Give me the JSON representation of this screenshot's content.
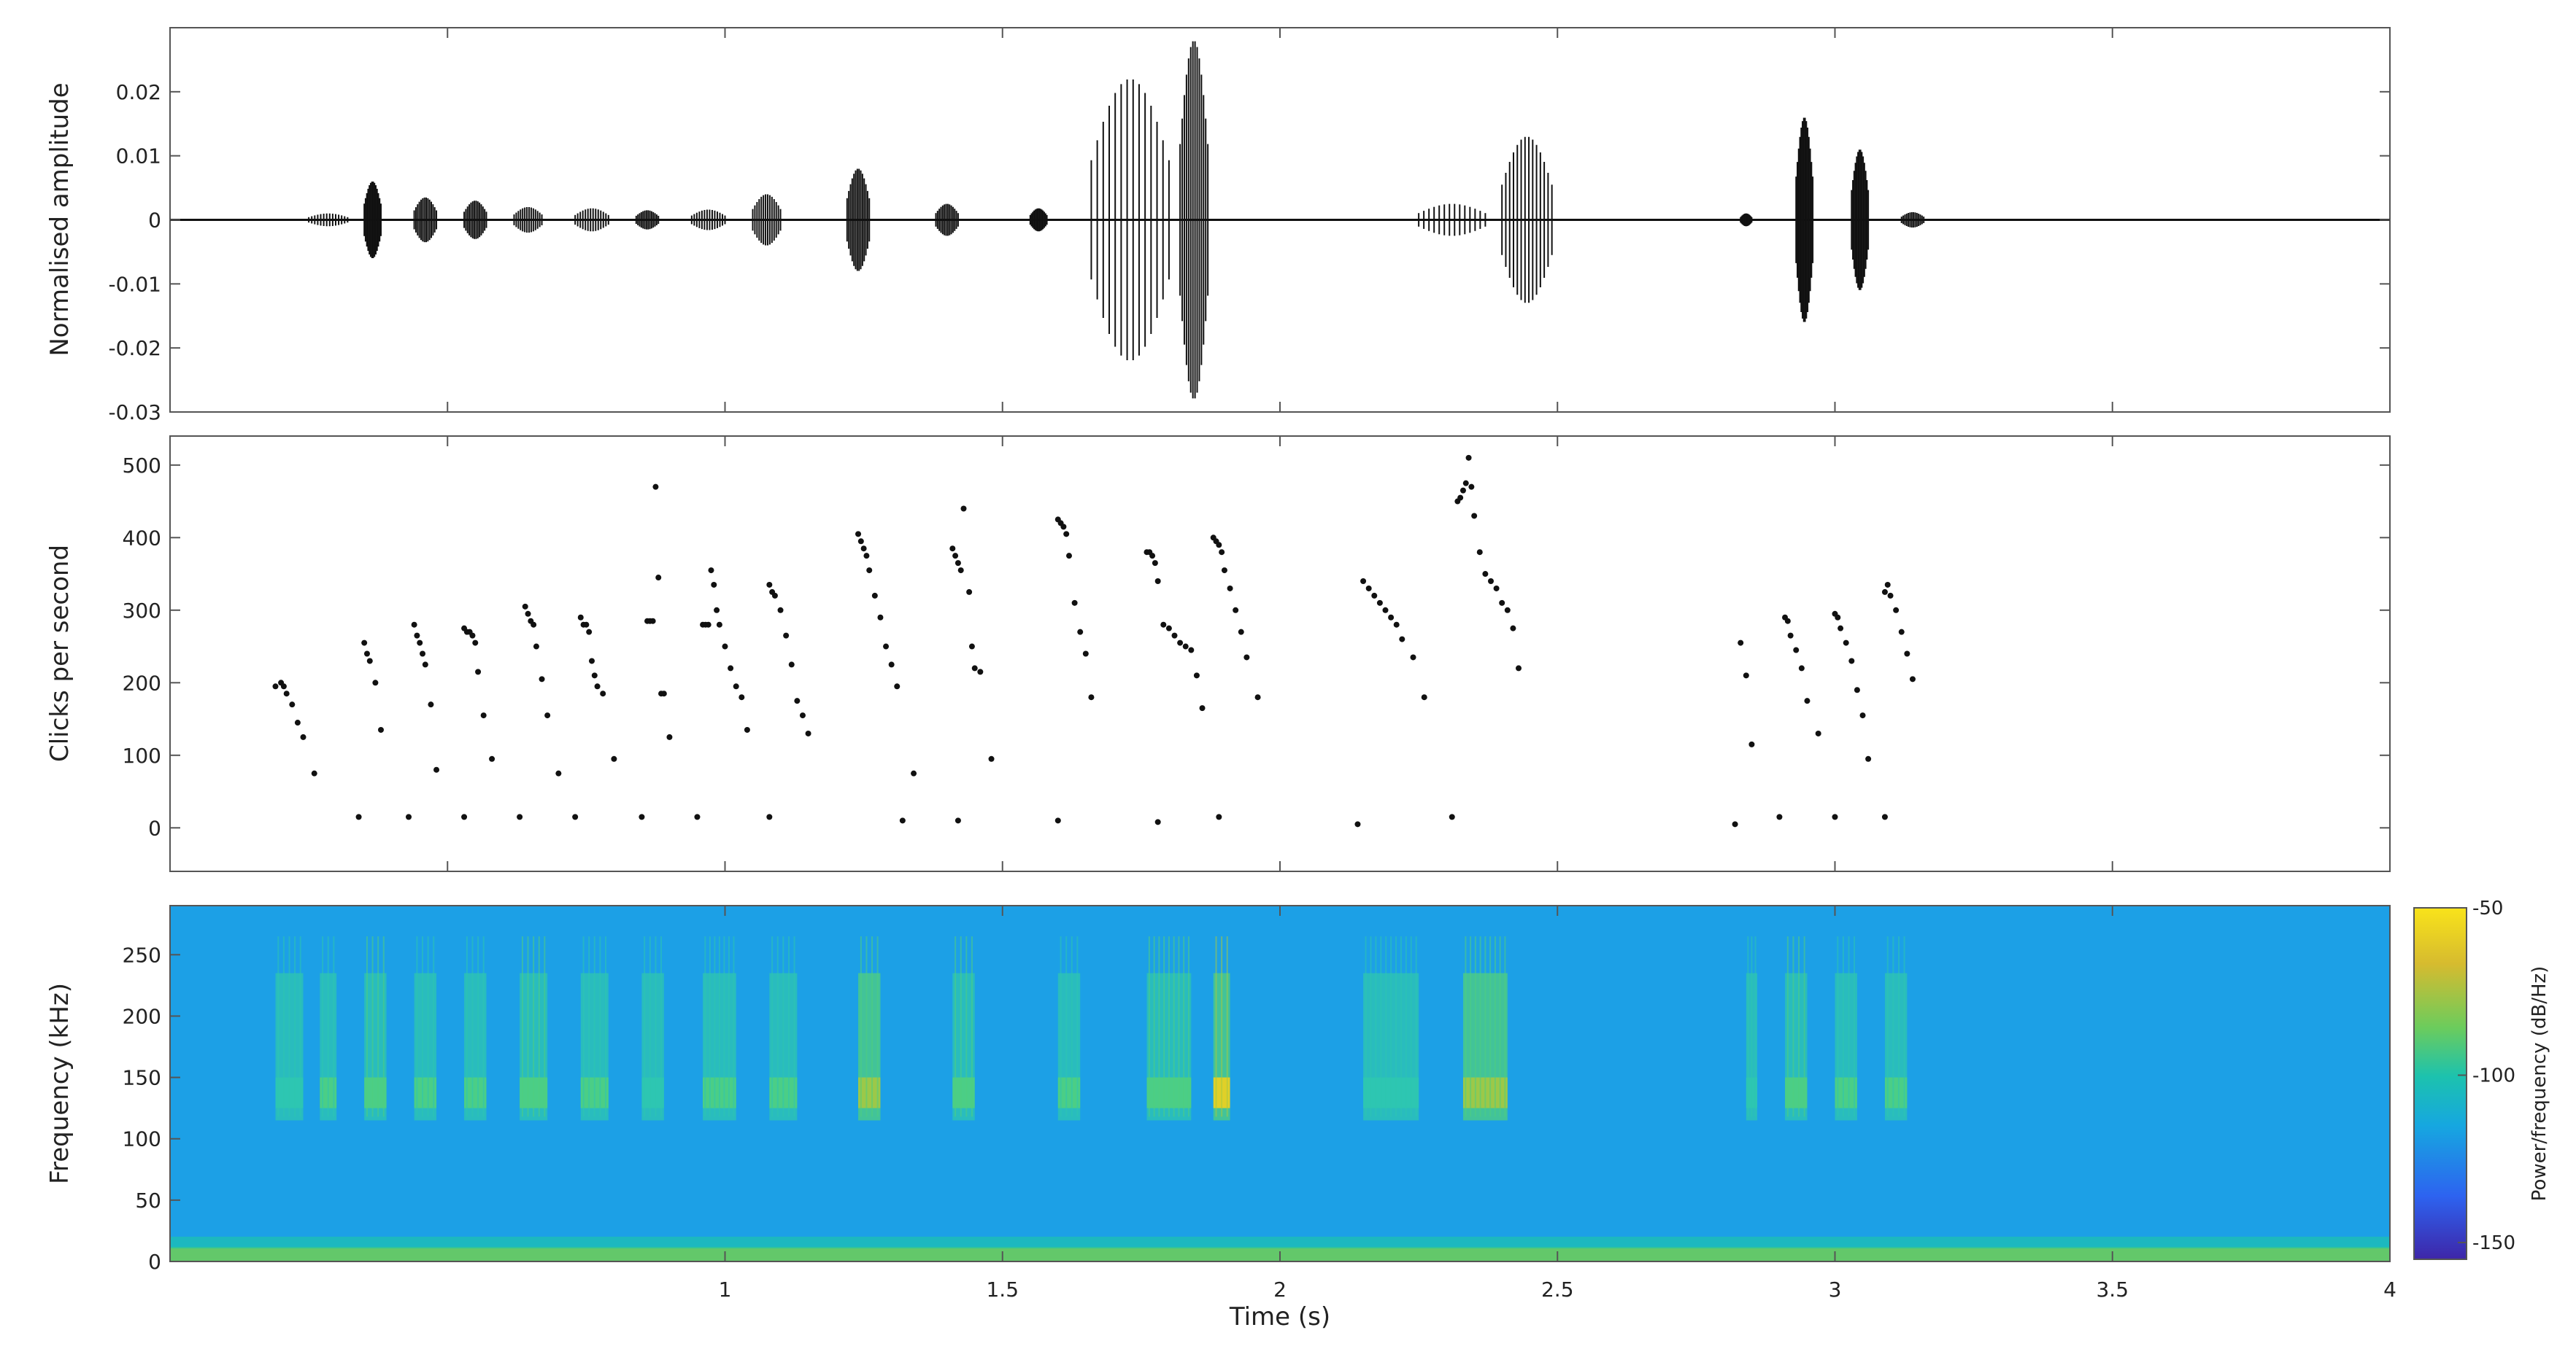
{
  "chart_data": [
    {
      "type": "line",
      "panel": "waveform",
      "ylabel": "Normalised amplitude",
      "xlabel": "",
      "xlim": [
        0,
        4
      ],
      "ylim": [
        -0.03,
        0.03
      ],
      "yticks": [
        -0.03,
        -0.02,
        -0.01,
        0,
        0.01,
        0.02
      ],
      "yticklabels": [
        "-0.03",
        "-0.02",
        "-0.01",
        "0",
        "0.01",
        "0.02"
      ],
      "grid": false,
      "bursts": [
        {
          "t0": 0.25,
          "t1": 0.32,
          "peak": 0.001
        },
        {
          "t0": 0.35,
          "t1": 0.38,
          "peak": 0.006
        },
        {
          "t0": 0.44,
          "t1": 0.48,
          "peak": 0.0035
        },
        {
          "t0": 0.53,
          "t1": 0.57,
          "peak": 0.003
        },
        {
          "t0": 0.62,
          "t1": 0.67,
          "peak": 0.002
        },
        {
          "t0": 0.73,
          "t1": 0.79,
          "peak": 0.0018
        },
        {
          "t0": 0.84,
          "t1": 0.88,
          "peak": 0.0015
        },
        {
          "t0": 0.94,
          "t1": 1.0,
          "peak": 0.0016
        },
        {
          "t0": 1.05,
          "t1": 1.1,
          "peak": 0.004
        },
        {
          "t0": 1.22,
          "t1": 1.26,
          "peak": 0.008
        },
        {
          "t0": 1.38,
          "t1": 1.42,
          "peak": 0.0025
        },
        {
          "t0": 1.55,
          "t1": 1.58,
          "peak": 0.0018
        },
        {
          "t0": 1.66,
          "t1": 1.8,
          "peak": 0.022
        },
        {
          "t0": 1.82,
          "t1": 1.87,
          "peak": 0.028
        },
        {
          "t0": 2.25,
          "t1": 2.37,
          "peak": 0.0025
        },
        {
          "t0": 2.4,
          "t1": 2.49,
          "peak": 0.013
        },
        {
          "t0": 2.83,
          "t1": 2.85,
          "peak": 0.001
        },
        {
          "t0": 2.93,
          "t1": 2.96,
          "peak": 0.016
        },
        {
          "t0": 3.03,
          "t1": 3.06,
          "peak": 0.011
        },
        {
          "t0": 3.12,
          "t1": 3.16,
          "peak": 0.0012
        }
      ]
    },
    {
      "type": "scatter",
      "panel": "click-rate",
      "ylabel": "Clicks per second",
      "xlabel": "",
      "xlim": [
        0,
        4
      ],
      "ylim": [
        -60,
        540
      ],
      "yticks": [
        0,
        100,
        200,
        300,
        400,
        500
      ],
      "yticklabels": [
        "0",
        "100",
        "200",
        "300",
        "400",
        "500"
      ],
      "grid": false,
      "points": [
        [
          0.19,
          195
        ],
        [
          0.2,
          200
        ],
        [
          0.205,
          195
        ],
        [
          0.21,
          185
        ],
        [
          0.22,
          170
        ],
        [
          0.23,
          145
        ],
        [
          0.24,
          125
        ],
        [
          0.26,
          75
        ],
        [
          0.34,
          15
        ],
        [
          0.35,
          255
        ],
        [
          0.355,
          240
        ],
        [
          0.36,
          230
        ],
        [
          0.37,
          200
        ],
        [
          0.38,
          135
        ],
        [
          0.43,
          15
        ],
        [
          0.44,
          280
        ],
        [
          0.445,
          265
        ],
        [
          0.45,
          255
        ],
        [
          0.455,
          240
        ],
        [
          0.46,
          225
        ],
        [
          0.47,
          170
        ],
        [
          0.48,
          80
        ],
        [
          0.53,
          15
        ],
        [
          0.53,
          275
        ],
        [
          0.535,
          270
        ],
        [
          0.54,
          270
        ],
        [
          0.545,
          265
        ],
        [
          0.55,
          255
        ],
        [
          0.555,
          215
        ],
        [
          0.565,
          155
        ],
        [
          0.58,
          95
        ],
        [
          0.63,
          15
        ],
        [
          0.64,
          305
        ],
        [
          0.645,
          295
        ],
        [
          0.65,
          285
        ],
        [
          0.655,
          280
        ],
        [
          0.66,
          250
        ],
        [
          0.67,
          205
        ],
        [
          0.68,
          155
        ],
        [
          0.7,
          75
        ],
        [
          0.73,
          15
        ],
        [
          0.74,
          290
        ],
        [
          0.745,
          280
        ],
        [
          0.75,
          280
        ],
        [
          0.755,
          270
        ],
        [
          0.76,
          230
        ],
        [
          0.765,
          210
        ],
        [
          0.77,
          195
        ],
        [
          0.78,
          185
        ],
        [
          0.8,
          95
        ],
        [
          0.85,
          15
        ],
        [
          0.86,
          285
        ],
        [
          0.865,
          285
        ],
        [
          0.87,
          285
        ],
        [
          0.875,
          470
        ],
        [
          0.88,
          345
        ],
        [
          0.885,
          185
        ],
        [
          0.89,
          185
        ],
        [
          0.9,
          125
        ],
        [
          0.95,
          15
        ],
        [
          0.96,
          280
        ],
        [
          0.965,
          280
        ],
        [
          0.97,
          280
        ],
        [
          0.975,
          355
        ],
        [
          0.98,
          335
        ],
        [
          0.985,
          300
        ],
        [
          0.99,
          280
        ],
        [
          1.0,
          250
        ],
        [
          1.01,
          220
        ],
        [
          1.02,
          195
        ],
        [
          1.03,
          180
        ],
        [
          1.04,
          135
        ],
        [
          1.08,
          15
        ],
        [
          1.08,
          335
        ],
        [
          1.085,
          325
        ],
        [
          1.09,
          320
        ],
        [
          1.1,
          300
        ],
        [
          1.11,
          265
        ],
        [
          1.12,
          225
        ],
        [
          1.13,
          175
        ],
        [
          1.14,
          155
        ],
        [
          1.15,
          130
        ],
        [
          1.24,
          405
        ],
        [
          1.245,
          395
        ],
        [
          1.25,
          385
        ],
        [
          1.255,
          375
        ],
        [
          1.26,
          355
        ],
        [
          1.27,
          320
        ],
        [
          1.28,
          290
        ],
        [
          1.29,
          250
        ],
        [
          1.3,
          225
        ],
        [
          1.31,
          195
        ],
        [
          1.34,
          75
        ],
        [
          1.32,
          10
        ],
        [
          1.41,
          385
        ],
        [
          1.415,
          375
        ],
        [
          1.42,
          365
        ],
        [
          1.425,
          355
        ],
        [
          1.43,
          440
        ],
        [
          1.44,
          325
        ],
        [
          1.445,
          250
        ],
        [
          1.45,
          220
        ],
        [
          1.46,
          215
        ],
        [
          1.48,
          95
        ],
        [
          1.42,
          10
        ],
        [
          1.6,
          425
        ],
        [
          1.605,
          420
        ],
        [
          1.61,
          415
        ],
        [
          1.615,
          405
        ],
        [
          1.62,
          375
        ],
        [
          1.63,
          310
        ],
        [
          1.64,
          270
        ],
        [
          1.65,
          240
        ],
        [
          1.66,
          180
        ],
        [
          1.6,
          10
        ],
        [
          1.76,
          380
        ],
        [
          1.765,
          380
        ],
        [
          1.77,
          375
        ],
        [
          1.775,
          365
        ],
        [
          1.78,
          340
        ],
        [
          1.79,
          280
        ],
        [
          1.8,
          275
        ],
        [
          1.81,
          265
        ],
        [
          1.82,
          255
        ],
        [
          1.83,
          250
        ],
        [
          1.84,
          245
        ],
        [
          1.85,
          210
        ],
        [
          1.86,
          165
        ],
        [
          1.78,
          8
        ],
        [
          1.88,
          400
        ],
        [
          1.885,
          395
        ],
        [
          1.89,
          390
        ],
        [
          1.895,
          380
        ],
        [
          1.9,
          355
        ],
        [
          1.91,
          330
        ],
        [
          1.92,
          300
        ],
        [
          1.93,
          270
        ],
        [
          1.94,
          235
        ],
        [
          1.96,
          180
        ],
        [
          1.89,
          15
        ],
        [
          2.15,
          340
        ],
        [
          2.16,
          330
        ],
        [
          2.17,
          320
        ],
        [
          2.18,
          310
        ],
        [
          2.19,
          300
        ],
        [
          2.2,
          290
        ],
        [
          2.21,
          280
        ],
        [
          2.22,
          260
        ],
        [
          2.24,
          235
        ],
        [
          2.26,
          180
        ],
        [
          2.14,
          5
        ],
        [
          2.32,
          450
        ],
        [
          2.325,
          455
        ],
        [
          2.33,
          465
        ],
        [
          2.335,
          475
        ],
        [
          2.34,
          510
        ],
        [
          2.345,
          470
        ],
        [
          2.35,
          430
        ],
        [
          2.36,
          380
        ],
        [
          2.37,
          350
        ],
        [
          2.38,
          340
        ],
        [
          2.39,
          330
        ],
        [
          2.4,
          310
        ],
        [
          2.41,
          300
        ],
        [
          2.42,
          275
        ],
        [
          2.43,
          220
        ],
        [
          2.31,
          15
        ],
        [
          2.83,
          255
        ],
        [
          2.84,
          210
        ],
        [
          2.85,
          115
        ],
        [
          2.82,
          5
        ],
        [
          2.91,
          290
        ],
        [
          2.915,
          285
        ],
        [
          2.92,
          265
        ],
        [
          2.93,
          245
        ],
        [
          2.94,
          220
        ],
        [
          2.95,
          175
        ],
        [
          2.97,
          130
        ],
        [
          2.9,
          15
        ],
        [
          3.0,
          295
        ],
        [
          3.005,
          290
        ],
        [
          3.01,
          275
        ],
        [
          3.02,
          255
        ],
        [
          3.03,
          230
        ],
        [
          3.04,
          190
        ],
        [
          3.05,
          155
        ],
        [
          3.06,
          95
        ],
        [
          3.0,
          15
        ],
        [
          3.09,
          325
        ],
        [
          3.095,
          335
        ],
        [
          3.1,
          320
        ],
        [
          3.11,
          300
        ],
        [
          3.12,
          270
        ],
        [
          3.13,
          240
        ],
        [
          3.14,
          205
        ],
        [
          3.09,
          15
        ]
      ]
    },
    {
      "type": "heatmap",
      "panel": "spectrogram",
      "ylabel": "Frequency (kHz)",
      "xlabel": "Time (s)",
      "xlim": [
        0,
        4
      ],
      "ylim": [
        0,
        290
      ],
      "yticks": [
        0,
        50,
        100,
        150,
        200,
        250
      ],
      "yticklabels": [
        "0",
        "50",
        "100",
        "150",
        "200",
        "250"
      ],
      "xticks": [
        1,
        1.5,
        2,
        2.5,
        3,
        3.5,
        4
      ],
      "xticklabels": [
        "1",
        "1.5",
        "2",
        "2.5",
        "3",
        "3.5",
        "4"
      ],
      "colorbar": {
        "label": "Power/frequency (dB/Hz)",
        "ticks": [
          -50,
          -100,
          -150
        ],
        "ticklabels": [
          "-50",
          "-100",
          "-150"
        ],
        "range": [
          -155,
          -50
        ],
        "colormap": [
          "#3e26a8",
          "#2d63f0",
          "#16a7e0",
          "#1cc2ae",
          "#6ccc5c",
          "#d6bb2f",
          "#f9e31a"
        ]
      },
      "background_color": "#1ca0e6",
      "bands": [
        {
          "t": 0.19,
          "w": 0.05,
          "i": 0.35
        },
        {
          "t": 0.27,
          "w": 0.03,
          "i": 0.5
        },
        {
          "t": 0.35,
          "w": 0.04,
          "i": 0.55
        },
        {
          "t": 0.44,
          "w": 0.04,
          "i": 0.5
        },
        {
          "t": 0.53,
          "w": 0.04,
          "i": 0.5
        },
        {
          "t": 0.63,
          "w": 0.05,
          "i": 0.55
        },
        {
          "t": 0.74,
          "w": 0.05,
          "i": 0.45
        },
        {
          "t": 0.85,
          "w": 0.04,
          "i": 0.4
        },
        {
          "t": 0.96,
          "w": 0.06,
          "i": 0.5
        },
        {
          "t": 1.08,
          "w": 0.05,
          "i": 0.45
        },
        {
          "t": 1.24,
          "w": 0.04,
          "i": 0.7
        },
        {
          "t": 1.41,
          "w": 0.04,
          "i": 0.55
        },
        {
          "t": 1.6,
          "w": 0.04,
          "i": 0.45
        },
        {
          "t": 1.76,
          "w": 0.08,
          "i": 0.6
        },
        {
          "t": 1.88,
          "w": 0.03,
          "i": 0.95
        },
        {
          "t": 2.15,
          "w": 0.1,
          "i": 0.35
        },
        {
          "t": 2.33,
          "w": 0.08,
          "i": 0.7
        },
        {
          "t": 2.84,
          "w": 0.02,
          "i": 0.3
        },
        {
          "t": 2.91,
          "w": 0.04,
          "i": 0.55
        },
        {
          "t": 3.0,
          "w": 0.04,
          "i": 0.5
        },
        {
          "t": 3.09,
          "w": 0.04,
          "i": 0.45
        }
      ]
    }
  ]
}
